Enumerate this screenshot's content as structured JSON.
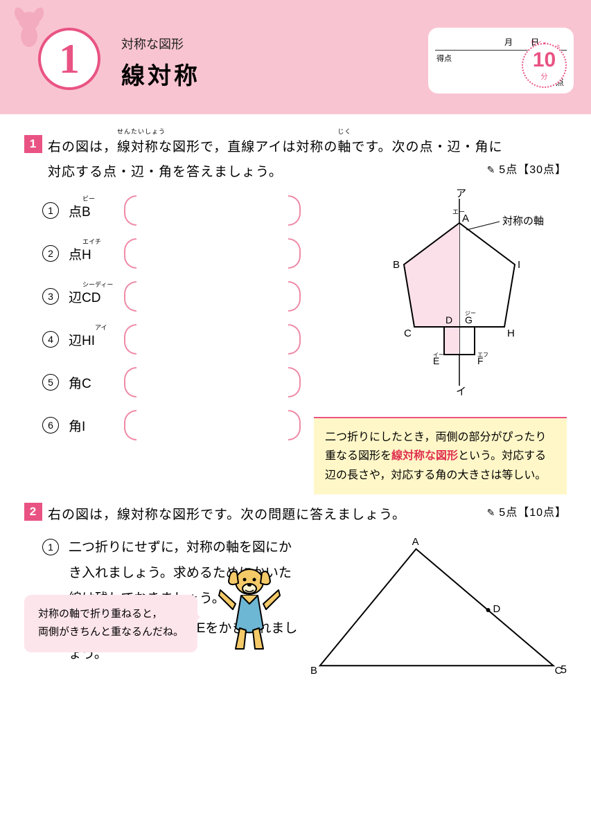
{
  "header": {
    "chapter_num": "1",
    "subtitle": "対称な図形",
    "title": "線対称",
    "score": {
      "month": "月",
      "day": "日",
      "tokuten": "得点",
      "ten": "点"
    },
    "timer": {
      "value": "10",
      "unit": "分",
      "label": "もくひょう"
    }
  },
  "q1": {
    "num": "1",
    "text_parts": {
      "p1": "右の図は，",
      "ruby1_base": "線対称",
      "ruby1_rt": "せんたいしょう",
      "p2": "な図形で，直線アイは対称の",
      "ruby2_base": "軸",
      "ruby2_rt": "じく",
      "p3": "です。次の点・辺・角に",
      "p4": "対応する点・辺・角を答えましょう。"
    },
    "points": "5点【30点】",
    "items": [
      {
        "n": "①",
        "label": "点B",
        "rt": "ビー"
      },
      {
        "n": "②",
        "label": "点H",
        "rt": "エイチ"
      },
      {
        "n": "③",
        "label": "辺CD",
        "rt": "シーディー"
      },
      {
        "n": "④",
        "label": "辺HI",
        "rt": "　　アイ"
      },
      {
        "n": "⑤",
        "label": "角C",
        "rt": ""
      },
      {
        "n": "⑥",
        "label": "角I",
        "rt": ""
      }
    ],
    "figure": {
      "axis_label": "対称の軸",
      "labels": {
        "top": "ア",
        "bottom": "イ",
        "A": "A",
        "A_rt": "エー",
        "B": "B",
        "C": "C",
        "D": "D",
        "E": "E",
        "E_rt": "イー",
        "F": "F",
        "F_rt": "エフ",
        "G": "G",
        "G_rt": "ジー",
        "H": "H",
        "I": "I"
      },
      "colors": {
        "fill": "#fbe0e9",
        "stroke": "#000000",
        "axis": "#000000"
      }
    }
  },
  "note": {
    "t1": "二つ折りにしたとき，両側の部分がぴったり重なる図形を",
    "em": "線対称な図形",
    "t2": "という。対応する辺の長さや，対応する角の大きさは等しい。"
  },
  "q2": {
    "num": "2",
    "text": "右の図は，線対称な図形です。次の問題に答えましょう。",
    "points": "5点【10点】",
    "sub1": "二つ折りにせずに，対称の軸を図にかき入れましょう。求めるためにかいた線は残しておきましょう。",
    "sub2": "図の点Dに対応する点Eをかき入れましょう。",
    "figure": {
      "A": "A",
      "B": "B",
      "C": "C",
      "D": "D"
    }
  },
  "hint": {
    "line1": "対称の軸で折り重ねると，",
    "line2": "両側がきちんと重なるんだね。"
  },
  "page": "5"
}
